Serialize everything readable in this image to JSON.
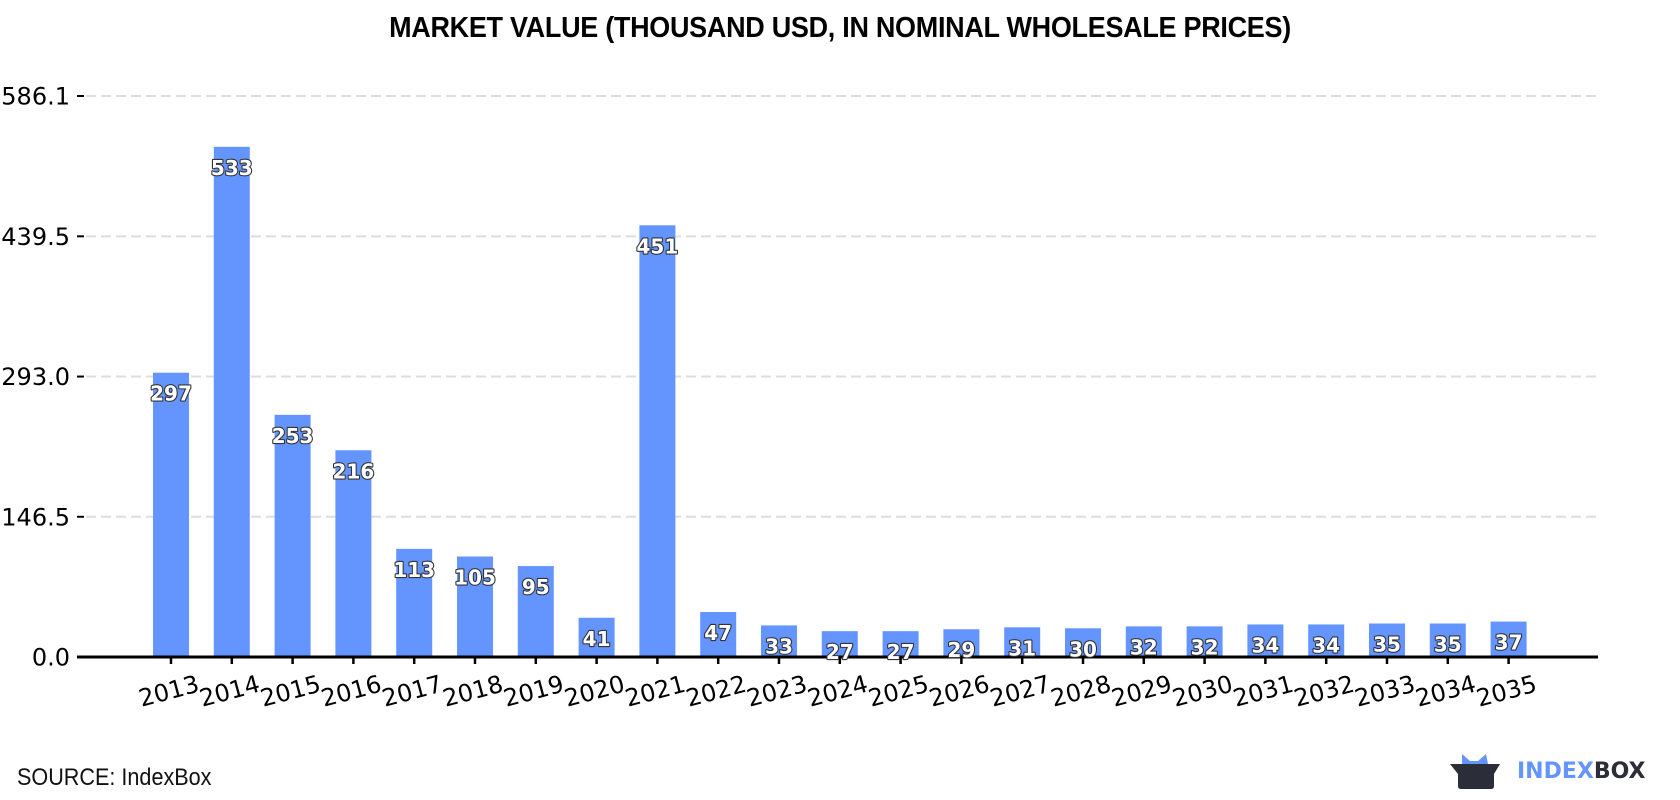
{
  "title": "MARKET VALUE (THOUSAND USD, IN NOMINAL WHOLESALE PRICES)",
  "source": "SOURCE: IndexBox",
  "logo": {
    "part1": "INDEX",
    "part2": "BOX",
    "icon": "box-crown-icon"
  },
  "colors": {
    "bar": "#6495FF",
    "grid": "#dddddd",
    "axis": "#000000",
    "logo_blue": "#6495FF",
    "logo_dark": "#2b2d38"
  },
  "chart_data": {
    "type": "bar",
    "title": "MARKET VALUE (THOUSAND USD, IN NOMINAL WHOLESALE PRICES)",
    "xlabel": "",
    "ylabel": "",
    "categories": [
      "2013",
      "2014",
      "2015",
      "2016",
      "2017",
      "2018",
      "2019",
      "2020",
      "2021",
      "2022",
      "2023",
      "2024",
      "2025",
      "2026",
      "2027",
      "2028",
      "2029",
      "2030",
      "2031",
      "2032",
      "2033",
      "2034",
      "2035"
    ],
    "values": [
      297,
      533,
      253,
      216,
      113,
      105,
      95,
      41,
      451,
      47,
      33,
      27,
      27,
      29,
      31,
      30,
      32,
      32,
      34,
      34,
      35,
      35,
      37
    ],
    "yticks": [
      0.0,
      146.5,
      293.0,
      439.5,
      586.1
    ],
    "ytick_labels": [
      "0.0",
      "146.5",
      "293.0",
      "439.5",
      "586.1"
    ],
    "ylim": [
      0,
      586.1
    ],
    "grid": true,
    "grid_style": "dashed-horizontal",
    "data_labels": true,
    "legend": null
  }
}
